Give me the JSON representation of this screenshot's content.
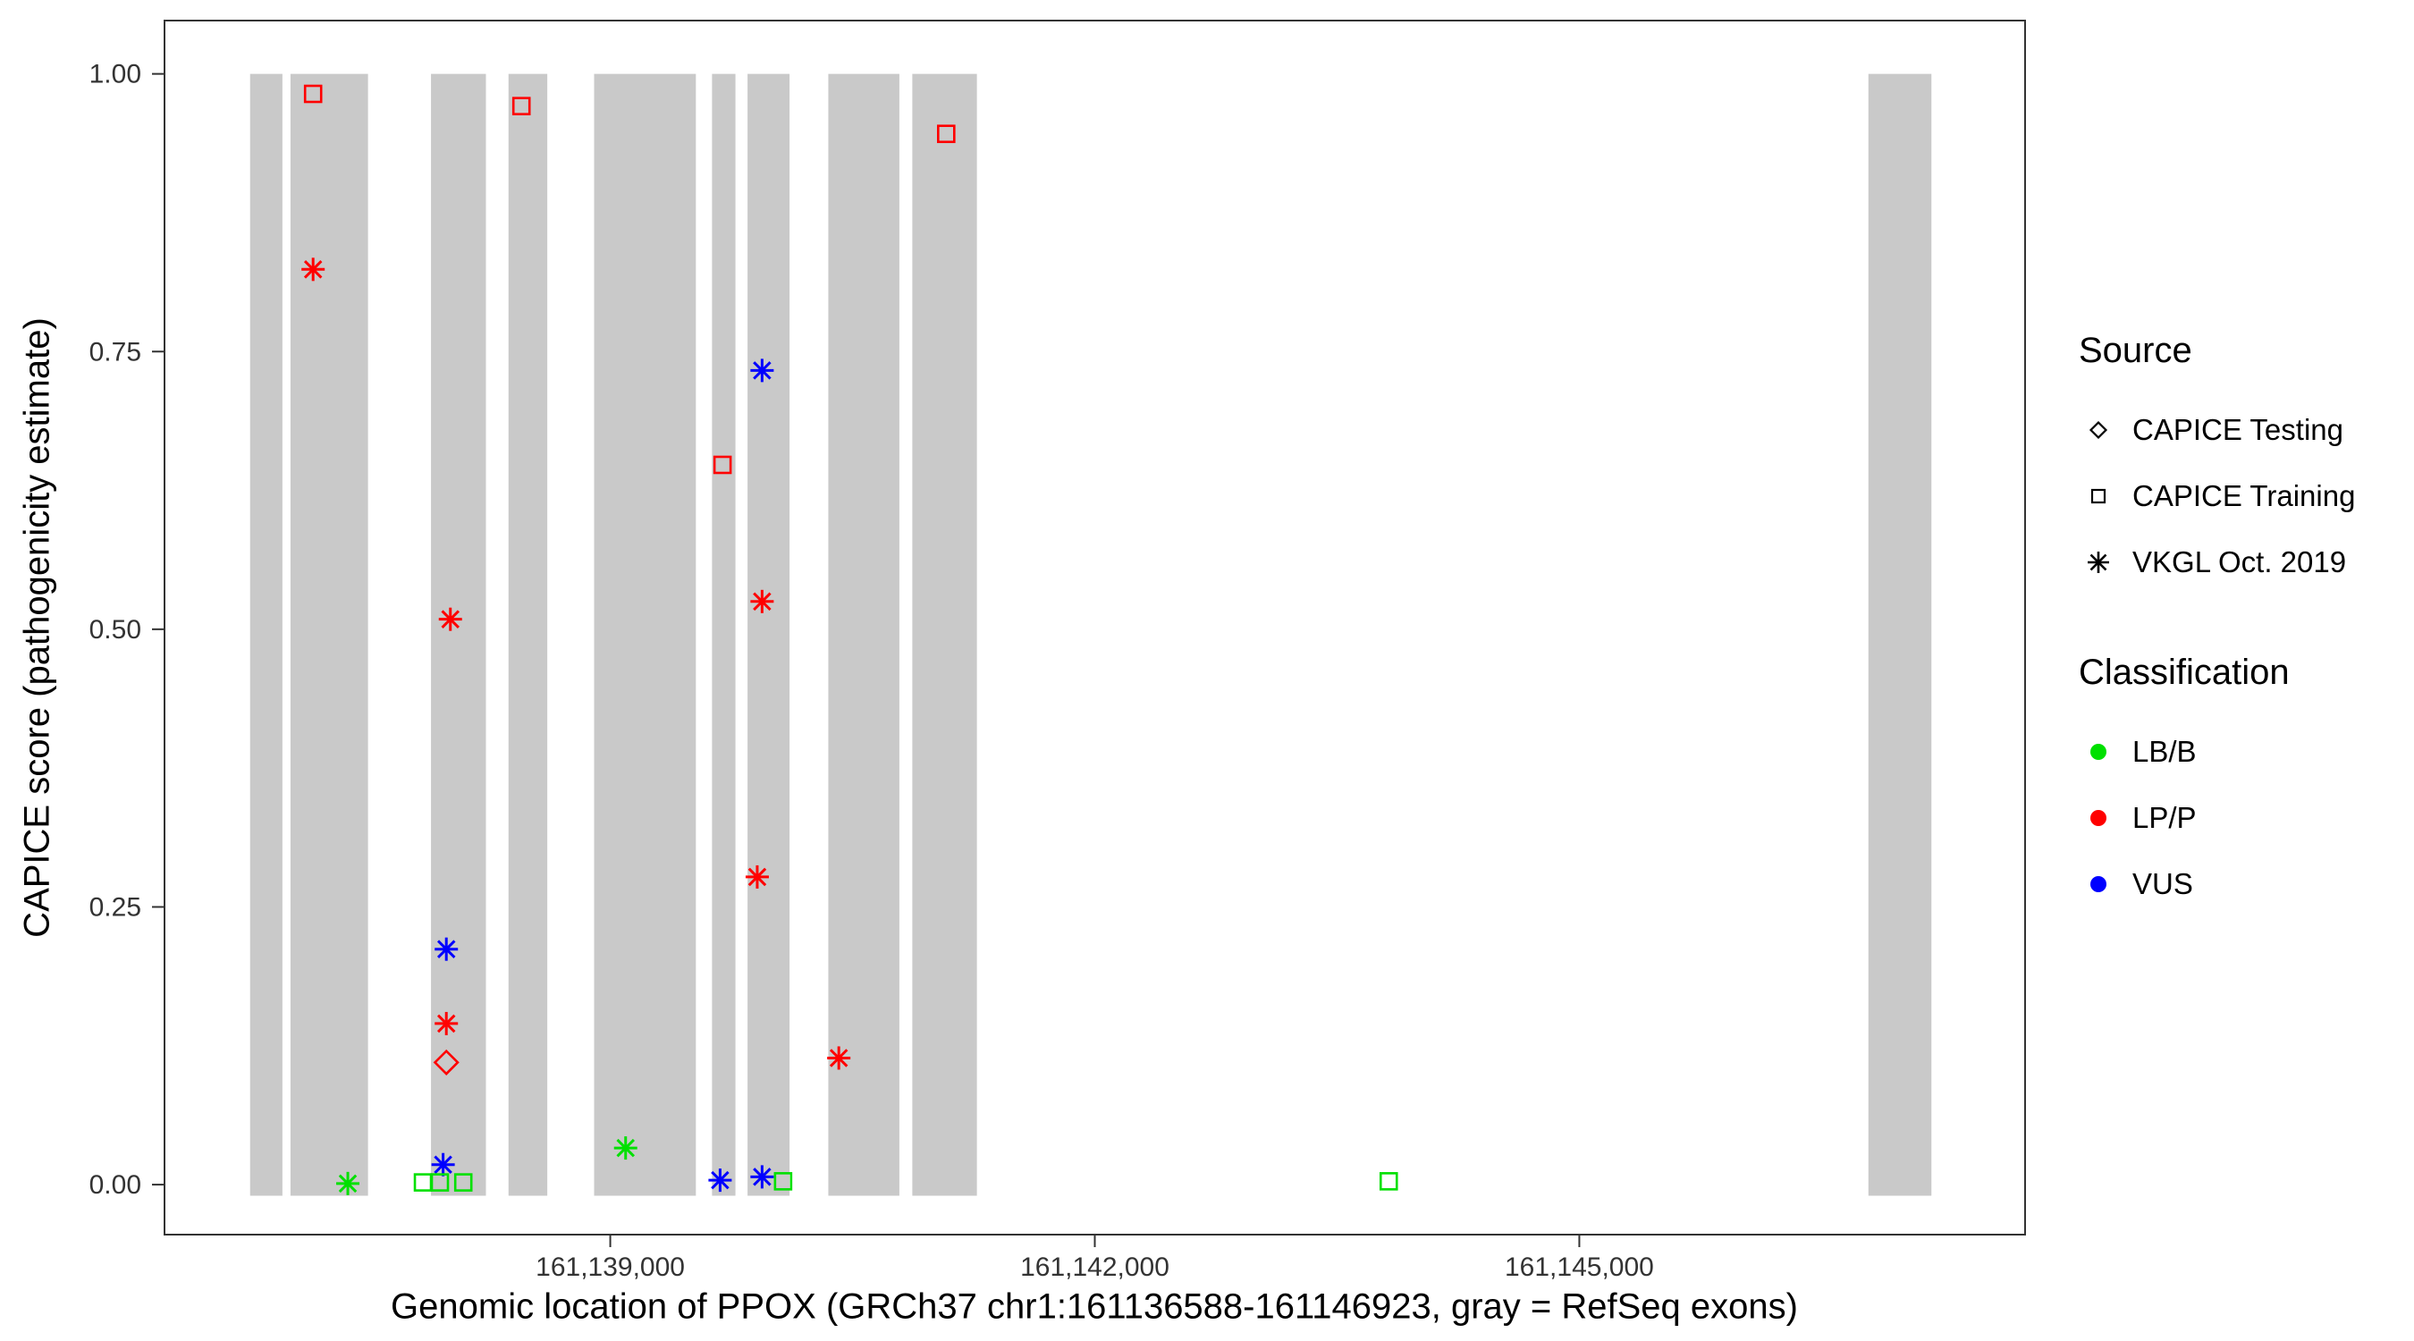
{
  "chart_data": {
    "type": "scatter",
    "xlabel": "Genomic location of PPOX (GRCh37 chr1:161136588-161146923, gray = RefSeq exons)",
    "ylabel": "CAPICE score (pathogenicity estimate)",
    "x_domain": [
      161136240,
      161147760
    ],
    "y_domain": [
      -0.045,
      1.048
    ],
    "x_ticks": [
      {
        "value": 161139000,
        "label": "161,139,000"
      },
      {
        "value": 161142000,
        "label": "161,142,000"
      },
      {
        "value": 161145000,
        "label": "161,145,000"
      }
    ],
    "y_ticks": [
      {
        "value": 0.0,
        "label": "0.00"
      },
      {
        "value": 0.25,
        "label": "0.25"
      },
      {
        "value": 0.5,
        "label": "0.50"
      },
      {
        "value": 0.75,
        "label": "0.75"
      },
      {
        "value": 1.0,
        "label": "1.00"
      }
    ],
    "exon_color": "#C9C9C9",
    "exon_y_range": [
      -0.01,
      1.0
    ],
    "exons": [
      {
        "start": 161136770,
        "end": 161136970
      },
      {
        "start": 161137020,
        "end": 161137500
      },
      {
        "start": 161137890,
        "end": 161138230
      },
      {
        "start": 161138370,
        "end": 161138610
      },
      {
        "start": 161138900,
        "end": 161139530
      },
      {
        "start": 161139630,
        "end": 161139775
      },
      {
        "start": 161139850,
        "end": 161140110
      },
      {
        "start": 161140350,
        "end": 161140790
      },
      {
        "start": 161140870,
        "end": 161141270
      },
      {
        "start": 161146790,
        "end": 161147180
      }
    ],
    "shape_by_source": {
      "CAPICE Testing": "diamond",
      "CAPICE Training": "square",
      "VKGL Oct. 2019": "asterisk"
    },
    "color_by_classification": {
      "LB/B": "#00E000",
      "LP/P": "#FF0000",
      "VUS": "#0000FF"
    },
    "points": [
      {
        "x": 161137160,
        "y": 0.982,
        "source": "CAPICE Training",
        "classification": "LP/P"
      },
      {
        "x": 161137160,
        "y": 0.824,
        "source": "VKGL Oct. 2019",
        "classification": "LP/P"
      },
      {
        "x": 161137375,
        "y": 0.001,
        "source": "VKGL Oct. 2019",
        "classification": "LB/B"
      },
      {
        "x": 161138450,
        "y": 0.971,
        "source": "CAPICE Training",
        "classification": "LP/P"
      },
      {
        "x": 161138010,
        "y": 0.509,
        "source": "VKGL Oct. 2019",
        "classification": "LP/P"
      },
      {
        "x": 161137985,
        "y": 0.212,
        "source": "VKGL Oct. 2019",
        "classification": "VUS"
      },
      {
        "x": 161137985,
        "y": 0.145,
        "source": "VKGL Oct. 2019",
        "classification": "LP/P"
      },
      {
        "x": 161137985,
        "y": 0.11,
        "source": "CAPICE Testing",
        "classification": "LP/P"
      },
      {
        "x": 161137965,
        "y": 0.018,
        "source": "VKGL Oct. 2019",
        "classification": "VUS"
      },
      {
        "x": 161137840,
        "y": 0.002,
        "source": "CAPICE Training",
        "classification": "LB/B"
      },
      {
        "x": 161137945,
        "y": 0.002,
        "source": "CAPICE Training",
        "classification": "LB/B"
      },
      {
        "x": 161138090,
        "y": 0.002,
        "source": "CAPICE Training",
        "classification": "LB/B"
      },
      {
        "x": 161139095,
        "y": 0.033,
        "source": "VKGL Oct. 2019",
        "classification": "LB/B"
      },
      {
        "x": 161139695,
        "y": 0.648,
        "source": "CAPICE Training",
        "classification": "LP/P"
      },
      {
        "x": 161139940,
        "y": 0.733,
        "source": "VKGL Oct. 2019",
        "classification": "VUS"
      },
      {
        "x": 161139940,
        "y": 0.525,
        "source": "VKGL Oct. 2019",
        "classification": "LP/P"
      },
      {
        "x": 161139910,
        "y": 0.277,
        "source": "VKGL Oct. 2019",
        "classification": "LP/P"
      },
      {
        "x": 161139680,
        "y": 0.004,
        "source": "VKGL Oct. 2019",
        "classification": "VUS"
      },
      {
        "x": 161139940,
        "y": 0.007,
        "source": "VKGL Oct. 2019",
        "classification": "VUS"
      },
      {
        "x": 161140070,
        "y": 0.003,
        "source": "CAPICE Training",
        "classification": "LB/B"
      },
      {
        "x": 161140415,
        "y": 0.114,
        "source": "VKGL Oct. 2019",
        "classification": "LP/P"
      },
      {
        "x": 161141080,
        "y": 0.946,
        "source": "CAPICE Training",
        "classification": "LP/P"
      },
      {
        "x": 161143820,
        "y": 0.003,
        "source": "CAPICE Training",
        "classification": "LB/B"
      }
    ]
  },
  "legend": {
    "source": {
      "title": "Source",
      "items": [
        {
          "label": "CAPICE Testing",
          "shape": "diamond"
        },
        {
          "label": "CAPICE Training",
          "shape": "square"
        },
        {
          "label": "VKGL Oct. 2019",
          "shape": "asterisk"
        }
      ]
    },
    "classification": {
      "title": "Classification",
      "items": [
        {
          "label": "LB/B",
          "color": "#00E000"
        },
        {
          "label": "LP/P",
          "color": "#FF0000"
        },
        {
          "label": "VUS",
          "color": "#0000FF"
        }
      ]
    }
  }
}
